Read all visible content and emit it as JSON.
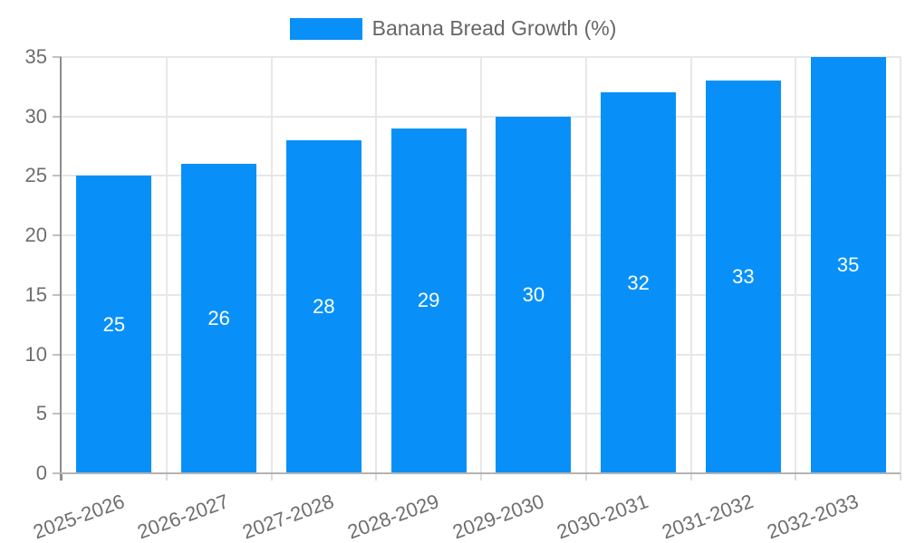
{
  "chart_data": {
    "type": "bar",
    "title": "",
    "xlabel": "",
    "ylabel": "",
    "categories": [
      "2025-2026",
      "2026-2027",
      "2027-2028",
      "2028-2029",
      "2029-2030",
      "2030-2031",
      "2031-2032",
      "2032-2033"
    ],
    "series": [
      {
        "name": "Banana Bread Growth (%)",
        "values": [
          25,
          26,
          28,
          29,
          30,
          32,
          33,
          35
        ]
      }
    ],
    "value_labels": "inside-center",
    "ylim": [
      0,
      35
    ],
    "ytick_step": 5,
    "ytick_labels": [
      "0",
      "5",
      "10",
      "15",
      "20",
      "25",
      "30",
      "35"
    ],
    "grid": true,
    "legend_position": "top-center",
    "colors": {
      "bar": "#0890F8",
      "value_label": "#FFFFFF",
      "tick_label": "#6E6E6E",
      "legend_label": "#666666",
      "gridline": "#E7E7E7",
      "y_axis_line": "#8C8C8C",
      "x_axis_line": "#B3B3B3",
      "y_tick_mark": "#C0C0C0",
      "x_tick_mark": "#DCDCDC",
      "background": "#FFFFFF"
    }
  }
}
